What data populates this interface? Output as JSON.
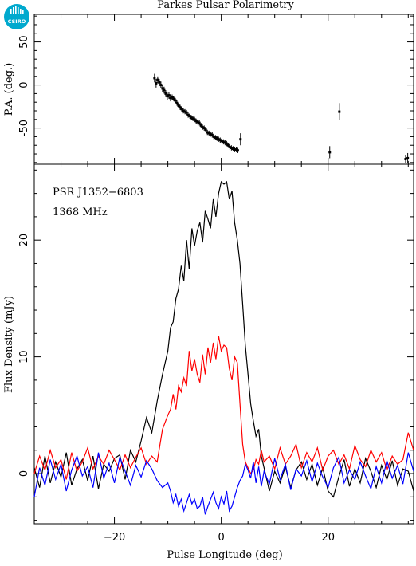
{
  "logo": {
    "text": "CSIRO",
    "color": "#00a9ce"
  },
  "title": "Parkes Pulsar Polarimetry",
  "chart_data": [
    {
      "type": "scatter",
      "panel": "position-angle",
      "ylabel": "P.A. (deg.)",
      "xlim": [
        -35,
        36
      ],
      "ylim": [
        -92,
        82
      ],
      "yticks": [
        -50,
        0,
        50
      ],
      "xticks": [
        -20,
        0,
        20
      ],
      "error_bars": true,
      "series": [
        {
          "x": [
            -12.5,
            -12.2,
            -11.9,
            -11.6,
            -11.3,
            -11.0,
            -10.7,
            -10.4,
            -10.1,
            -9.8,
            -9.5,
            -9.2,
            -8.9,
            -8.6,
            -8.3,
            -8.0,
            -7.7,
            -7.4,
            -7.1,
            -6.8,
            -6.5,
            -6.2,
            -5.9,
            -5.6,
            -5.3,
            -5.0,
            -4.7,
            -4.4,
            -4.1,
            -3.8,
            -3.5,
            -3.2,
            -2.9,
            -2.6,
            -2.3,
            -2.0,
            -1.7,
            -1.4,
            -1.1,
            -0.8,
            -0.5,
            -0.2,
            0.1,
            0.4,
            0.7,
            1.0,
            1.3,
            1.6,
            1.9,
            2.2,
            2.5,
            2.8,
            3.1,
            3.6,
            20.3,
            22.1,
            34.5,
            34.9
          ],
          "y": [
            8,
            2,
            6,
            3,
            0,
            -4,
            -6,
            -10,
            -13,
            -12,
            -15,
            -14,
            -16,
            -18,
            -21,
            -24,
            -26,
            -28,
            -30,
            -31,
            -32,
            -35,
            -36,
            -38,
            -39,
            -40,
            -42,
            -43,
            -44,
            -47,
            -49,
            -50,
            -52,
            -55,
            -56,
            -57,
            -58,
            -60,
            -61,
            -62,
            -63,
            -64,
            -65,
            -66,
            -67,
            -68,
            -70,
            -72,
            -73,
            -74,
            -75,
            -75,
            -76,
            -63,
            -78,
            -31,
            -86,
            -85
          ],
          "err": [
            5,
            5,
            4,
            4,
            4,
            4,
            4,
            4,
            4,
            4,
            4,
            3,
            3,
            3,
            3,
            3,
            3,
            3,
            3,
            3,
            3,
            3,
            3,
            3,
            3,
            3,
            3,
            3,
            3,
            3,
            3,
            3,
            3,
            3,
            3,
            3,
            3,
            3,
            3,
            3,
            3,
            3,
            3,
            3,
            3,
            3,
            3,
            3,
            3,
            3,
            3,
            3,
            3,
            7,
            7,
            10,
            5,
            6
          ]
        }
      ]
    },
    {
      "type": "line",
      "panel": "profile",
      "xlabel": "Pulse Longitude (deg)",
      "ylabel": "Flux Density (mJy)",
      "xlim": [
        -35,
        36
      ],
      "ylim": [
        -4.3,
        26.5
      ],
      "yticks": [
        0,
        10,
        20
      ],
      "xticks": [
        -20,
        0,
        20
      ],
      "annotations": [
        "PSR J1352−6803",
        "1368 MHz"
      ],
      "series": [
        {
          "name": "",
          "color": "#000000",
          "x": [
            -35,
            -34,
            -33,
            -32,
            -31,
            -30,
            -29,
            -28,
            -27,
            -26,
            -25,
            -24,
            -23,
            -22,
            -21,
            -20,
            -19,
            -18,
            -17,
            -16,
            -15,
            -14,
            -13,
            -12,
            -11,
            -10,
            -9.5,
            -9,
            -8.5,
            -8,
            -7.5,
            -7,
            -6.5,
            -6,
            -5.5,
            -5,
            -4.5,
            -4,
            -3.5,
            -3,
            -2.5,
            -2,
            -1.5,
            -1,
            -0.5,
            0,
            0.5,
            1,
            1.5,
            2,
            2.5,
            3,
            3.5,
            4,
            4.5,
            5,
            5.5,
            6,
            6.5,
            7,
            7.5,
            8,
            9,
            10,
            11,
            12,
            13,
            14,
            15,
            16,
            17,
            18,
            19,
            20,
            21,
            22,
            23,
            24,
            25,
            26,
            27,
            28,
            29,
            30,
            31,
            32,
            33,
            34,
            35,
            36
          ],
          "y": [
            0.5,
            -1.2,
            1.5,
            -0.8,
            1.0,
            -0.3,
            1.8,
            -1.0,
            0.4,
            1.2,
            -0.6,
            1.5,
            -1.3,
            0.8,
            0.2,
            1.3,
            1.6,
            -0.5,
            2.0,
            1.0,
            2.8,
            4.8,
            3.5,
            6.2,
            8.5,
            10.5,
            12.5,
            13.0,
            15.0,
            15.8,
            17.8,
            16.5,
            20.0,
            17.5,
            21.0,
            19.5,
            20.8,
            21.5,
            19.8,
            22.5,
            21.8,
            21.0,
            23.5,
            22.0,
            24.0,
            25.0,
            24.8,
            25.0,
            23.5,
            24.2,
            21.5,
            20.0,
            18.0,
            14.5,
            11.0,
            8.5,
            6.0,
            4.5,
            3.2,
            3.8,
            1.5,
            0.5,
            -1.5,
            0.2,
            -0.8,
            0.6,
            -1.2,
            0.3,
            1.0,
            -0.5,
            0.8,
            -1.0,
            0.5,
            -1.5,
            -2.0,
            -0.3,
            1.2,
            -1.1,
            0.4,
            -0.8,
            1.3,
            0.2,
            -1.2,
            0.7,
            -0.5,
            1.1,
            -1.0,
            0.4,
            0.2,
            -1.5
          ]
        },
        {
          "name": "",
          "color": "#ff0000",
          "x": [
            -35,
            -34,
            -33,
            -32,
            -31,
            -30,
            -29,
            -28,
            -27,
            -26,
            -25,
            -24,
            -23,
            -22,
            -21,
            -20,
            -19,
            -18,
            -17,
            -16,
            -15,
            -14,
            -13,
            -12,
            -11,
            -10,
            -9.5,
            -9,
            -8.5,
            -8,
            -7.5,
            -7,
            -6.5,
            -6,
            -5.5,
            -5,
            -4.5,
            -4,
            -3.5,
            -3,
            -2.5,
            -2,
            -1.5,
            -1,
            -0.5,
            0,
            0.5,
            1,
            1.5,
            2,
            2.5,
            3,
            3.5,
            4,
            4.5,
            5,
            5.5,
            6,
            6.5,
            7,
            7.5,
            8,
            9,
            10,
            11,
            12,
            13,
            14,
            15,
            16,
            17,
            18,
            19,
            20,
            21,
            22,
            23,
            24,
            25,
            26,
            27,
            28,
            29,
            30,
            31,
            32,
            33,
            34,
            35,
            36
          ],
          "y": [
            0,
            1.5,
            0.3,
            2.0,
            0.5,
            1.2,
            -0.5,
            1.8,
            0.2,
            1.0,
            2.2,
            0.4,
            1.5,
            0.8,
            2.0,
            1.2,
            0.3,
            1.6,
            0.5,
            1.4,
            2.2,
            0.8,
            1.5,
            1.0,
            3.8,
            5.0,
            5.5,
            6.8,
            5.5,
            7.5,
            7.0,
            8.2,
            7.5,
            10.5,
            8.8,
            9.8,
            8.5,
            7.8,
            10.2,
            8.5,
            10.8,
            9.5,
            11.2,
            9.8,
            11.8,
            10.5,
            11.0,
            10.8,
            9.0,
            8.0,
            10.0,
            9.5,
            6.0,
            2.5,
            1.0,
            0.5,
            0,
            0.3,
            1.2,
            0.8,
            2.0,
            1.0,
            1.5,
            0.4,
            2.2,
            0.8,
            1.5,
            2.5,
            0.5,
            1.8,
            1.0,
            2.2,
            0.3,
            1.5,
            2.0,
            0.8,
            1.6,
            0.4,
            2.4,
            1.2,
            0.6,
            2.0,
            1.0,
            1.8,
            0.3,
            1.5,
            0.8,
            1.2,
            3.5,
            2.0
          ]
        },
        {
          "name": "",
          "color": "#0000ff",
          "x": [
            -35,
            -34,
            -33,
            -32,
            -31,
            -30,
            -29,
            -28,
            -27,
            -26,
            -25,
            -24,
            -23,
            -22,
            -21,
            -20,
            -19,
            -18,
            -17,
            -16,
            -15,
            -14,
            -13,
            -12,
            -11,
            -10,
            -9.5,
            -9,
            -8.5,
            -8,
            -7.5,
            -7,
            -6.5,
            -6,
            -5.5,
            -5,
            -4.5,
            -4,
            -3.5,
            -3,
            -2.5,
            -2,
            -1.5,
            -1,
            -0.5,
            0,
            0.5,
            1,
            1.5,
            2,
            2.5,
            3,
            3.5,
            4,
            4.5,
            5,
            5.5,
            6,
            6.5,
            7,
            7.5,
            8,
            9,
            10,
            11,
            12,
            13,
            14,
            15,
            16,
            17,
            18,
            19,
            20,
            21,
            22,
            23,
            24,
            25,
            26,
            27,
            28,
            29,
            30,
            31,
            32,
            33,
            34,
            35,
            36
          ],
          "y": [
            -2.0,
            0.5,
            -1.0,
            1.2,
            -0.5,
            0.8,
            -1.5,
            0.3,
            1.5,
            -0.2,
            0.6,
            -1.2,
            1.8,
            -0.4,
            0.9,
            -0.8,
            1.4,
            0.2,
            -1.0,
            0.7,
            -0.3,
            1.1,
            0.4,
            -0.6,
            -1.2,
            -0.8,
            -1.5,
            -2.5,
            -1.8,
            -2.8,
            -2.2,
            -3.2,
            -2.5,
            -1.8,
            -2.6,
            -2.2,
            -3.0,
            -2.8,
            -2.0,
            -3.5,
            -2.8,
            -2.2,
            -1.6,
            -2.5,
            -3.0,
            -2.0,
            -2.6,
            -1.5,
            -3.2,
            -2.8,
            -2.0,
            -1.2,
            -0.6,
            -0.2,
            0.8,
            0.3,
            -0.4,
            1.0,
            -0.8,
            0.6,
            -1.1,
            0.2,
            -0.9,
            1.3,
            -0.5,
            0.8,
            -1.4,
            0.4,
            -0.2,
            1.1,
            -0.7,
            0.9,
            -0.3,
            -1.2,
            0.5,
            1.4,
            -0.8,
            0.3,
            -0.5,
            1.0,
            -0.2,
            -1.3,
            0.6,
            -0.8,
            1.1,
            -0.4,
            0.7,
            -0.9,
            1.8,
            0.2
          ]
        }
      ]
    }
  ]
}
